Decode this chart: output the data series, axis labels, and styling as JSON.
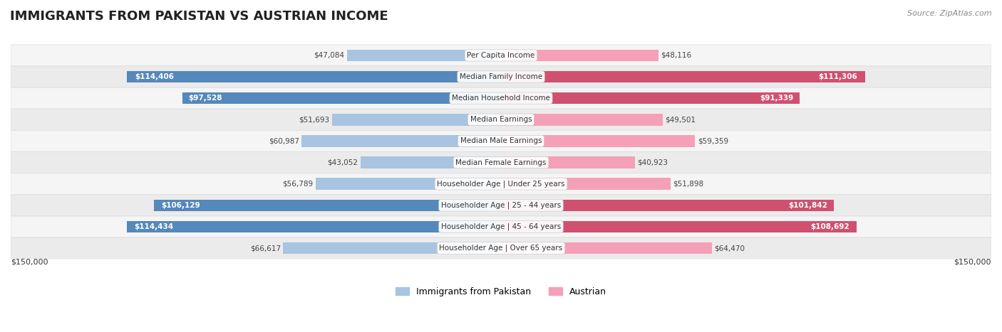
{
  "title": "IMMIGRANTS FROM PAKISTAN VS AUSTRIAN INCOME",
  "source": "Source: ZipAtlas.com",
  "categories": [
    "Per Capita Income",
    "Median Family Income",
    "Median Household Income",
    "Median Earnings",
    "Median Male Earnings",
    "Median Female Earnings",
    "Householder Age | Under 25 years",
    "Householder Age | 25 - 44 years",
    "Householder Age | 45 - 64 years",
    "Householder Age | Over 65 years"
  ],
  "pakistan_values": [
    47084,
    114406,
    97528,
    51693,
    60987,
    43052,
    56789,
    106129,
    114434,
    66617
  ],
  "austrian_values": [
    48116,
    111306,
    91339,
    49501,
    59359,
    40923,
    51898,
    101842,
    108692,
    64470
  ],
  "pakistan_labels": [
    "$47,084",
    "$114,406",
    "$97,528",
    "$51,693",
    "$60,987",
    "$43,052",
    "$56,789",
    "$106,129",
    "$114,434",
    "$66,617"
  ],
  "austrian_labels": [
    "$48,116",
    "$111,306",
    "$91,339",
    "$49,501",
    "$59,359",
    "$40,923",
    "$51,898",
    "$101,842",
    "$108,692",
    "$64,470"
  ],
  "max_value": 150000,
  "pakistan_color_light": "#a8c4e0",
  "pakistan_color_dark": "#6699cc",
  "austrian_color_light": "#f4a0b8",
  "austrian_color_dark": "#e06080",
  "pakistan_solid_threshold": 80000,
  "austrian_solid_threshold": 80000,
  "bg_color": "#ffffff",
  "row_bg_color": "#f0f0f0",
  "xlabel_left": "$150,000",
  "xlabel_right": "$150,000",
  "legend_pakistan": "Immigrants from Pakistan",
  "legend_austrian": "Austrian"
}
